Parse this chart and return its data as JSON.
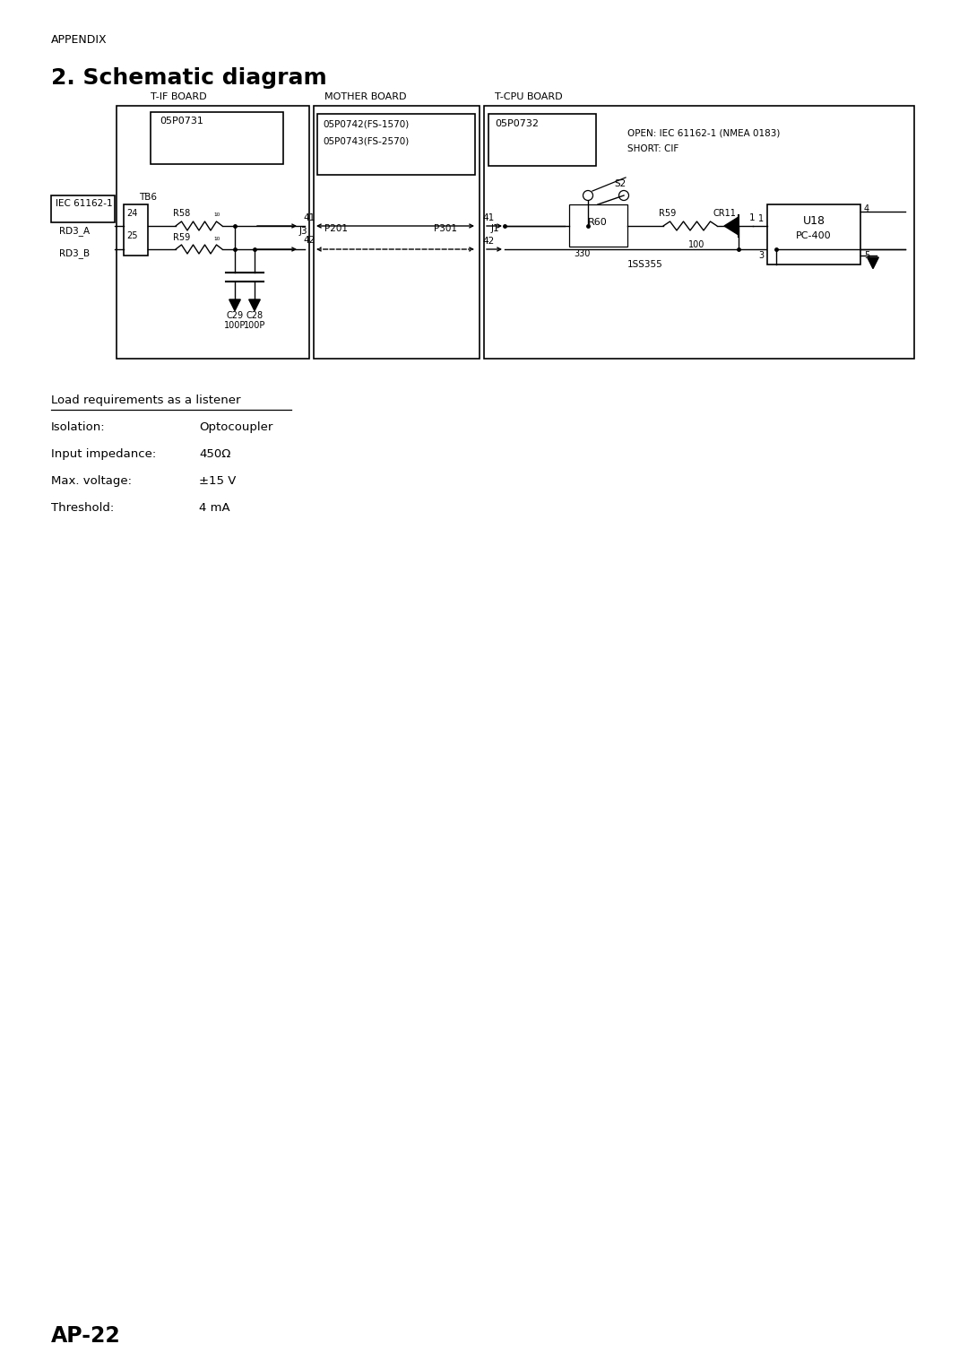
{
  "page_label": "APPENDIX",
  "title": "2. Schematic diagram",
  "ap_label": "AP-22",
  "bg_color": "#ffffff",
  "text_color": "#000000",
  "load_requirements": {
    "header": "Load requirements as a listener",
    "rows": [
      [
        "Isolation:",
        "Optocoupler"
      ],
      [
        "Input impedance:",
        "450Ω"
      ],
      [
        "Max. voltage:",
        "±15 V"
      ],
      [
        "Threshold:",
        "4 mA"
      ]
    ]
  }
}
